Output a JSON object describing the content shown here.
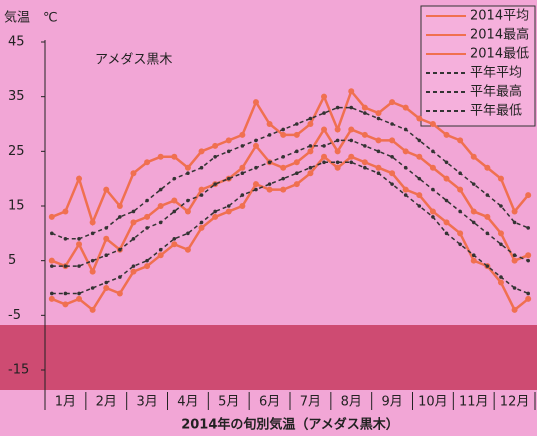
{
  "chart_data": {
    "type": "line",
    "title": "2014年の旬別気温（アメダス黒木）",
    "y_label": "気温　℃",
    "annotation": "アメダス黒木",
    "categories": [
      null,
      "1月",
      null,
      null,
      "2月",
      null,
      null,
      "3月",
      null,
      null,
      "4月",
      null,
      null,
      "5月",
      null,
      null,
      "6月",
      null,
      null,
      "7月",
      null,
      null,
      "8月",
      null,
      null,
      "9月",
      null,
      null,
      "10月",
      null,
      null,
      "11月",
      null,
      null,
      "12月",
      null
    ],
    "ylim": [
      -15,
      45
    ],
    "yticks": [
      -15,
      -5,
      5,
      15,
      25,
      35,
      45
    ],
    "series": [
      {
        "name": "2014平均",
        "color": "#f07050",
        "style": "solid",
        "values": [
          5,
          4,
          8,
          3,
          9,
          7,
          12,
          13,
          15,
          16,
          14,
          18,
          19,
          20,
          22,
          26,
          23,
          22,
          23,
          25,
          29,
          25,
          29,
          28,
          27,
          27,
          25,
          24,
          22,
          20,
          18,
          14,
          13,
          10,
          5,
          6
        ]
      },
      {
        "name": "2014最高",
        "color": "#f07050",
        "style": "solid",
        "values": [
          13,
          14,
          20,
          12,
          18,
          15,
          21,
          23,
          24,
          24,
          22,
          25,
          26,
          27,
          28,
          34,
          30,
          28,
          28,
          30,
          35,
          29,
          36,
          33,
          32,
          34,
          33,
          31,
          30,
          28,
          27,
          24,
          22,
          20,
          14,
          17
        ]
      },
      {
        "name": "2014最低",
        "color": "#f07050",
        "style": "solid",
        "values": [
          -2,
          -3,
          -2,
          -4,
          0,
          -1,
          3,
          4,
          6,
          8,
          7,
          11,
          13,
          14,
          15,
          19,
          18,
          18,
          19,
          21,
          24,
          22,
          24,
          23,
          22,
          21,
          18,
          17,
          14,
          12,
          10,
          5,
          4,
          1,
          -4,
          -2
        ]
      },
      {
        "name": "平年平均",
        "color": "#333333",
        "style": "dashed",
        "values": [
          4,
          4,
          4,
          5,
          6,
          7,
          9,
          11,
          12,
          14,
          16,
          17,
          19,
          20,
          21,
          22,
          23,
          24,
          25,
          26,
          26,
          27,
          27,
          26,
          25,
          24,
          22,
          20,
          18,
          16,
          14,
          12,
          10,
          8,
          6,
          5
        ]
      },
      {
        "name": "平年最高",
        "color": "#333333",
        "style": "dashed",
        "values": [
          10,
          9,
          9,
          10,
          11,
          13,
          14,
          16,
          18,
          20,
          21,
          22,
          24,
          25,
          26,
          27,
          28,
          29,
          30,
          31,
          32,
          33,
          33,
          32,
          31,
          30,
          29,
          27,
          25,
          23,
          21,
          19,
          17,
          15,
          12,
          11
        ]
      },
      {
        "name": "平年最低",
        "color": "#333333",
        "style": "dashed",
        "values": [
          -1,
          -1,
          -1,
          0,
          1,
          2,
          4,
          5,
          7,
          9,
          10,
          12,
          14,
          15,
          17,
          18,
          19,
          20,
          21,
          22,
          23,
          23,
          23,
          22,
          21,
          19,
          17,
          15,
          13,
          10,
          8,
          6,
          4,
          2,
          0,
          -1
        ]
      }
    ]
  }
}
